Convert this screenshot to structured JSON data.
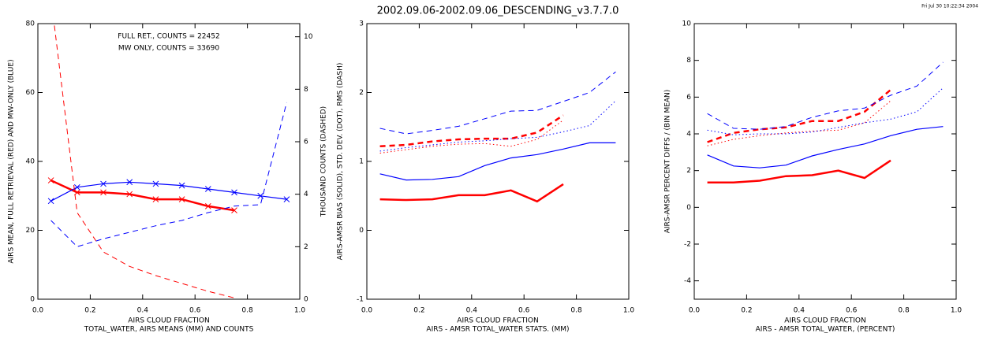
{
  "chart_data": [
    {
      "type": "line",
      "annotations": [
        {
          "text": "FULL RET.,  COUNTS = 22452",
          "color": "#ff0000"
        },
        {
          "text": "MW ONLY, COUNTS = 33690",
          "color": "#0000ff"
        }
      ],
      "ylabel": "AIRS MEAN, FULL RETRIEVAL (RED) AND MW-ONLY (BLUE)",
      "y2label": "THOUSAND COUNTS (DASHED)",
      "xlabel": "AIRS CLOUD FRACTION",
      "caption": "TOTAL_WATER, AIRS MEANS (MM) AND COUNTS",
      "xlim": [
        0,
        1
      ],
      "xticks": [
        {
          "value": 0,
          "label": "0.0"
        },
        0.2,
        0.4,
        0.6,
        0.8,
        {
          "value": 1,
          "label": "1.0"
        }
      ],
      "ylim": [
        0,
        80
      ],
      "yticks": [
        0,
        20,
        40,
        60,
        80
      ],
      "y2lim": [
        0,
        10.5
      ],
      "y2ticks": [
        0,
        2,
        4,
        6,
        8,
        10
      ],
      "x": [
        0.05,
        0.15,
        0.25,
        0.35,
        0.45,
        0.55,
        0.65,
        0.75,
        0.85,
        0.95
      ],
      "series": [
        {
          "color": "#ff0000",
          "style": "solid",
          "width": 2.5,
          "marker": "x",
          "values": [
            34.5,
            31,
            31,
            30.5,
            29,
            29,
            27,
            25.8,
            null,
            null
          ]
        },
        {
          "color": "#0000ff",
          "style": "solid",
          "width": 1.2,
          "marker": "x",
          "values": [
            28.5,
            32.5,
            33.5,
            34,
            33.5,
            33,
            32,
            31,
            30,
            29
          ]
        },
        {
          "color": "#ff0000",
          "style": "dashed",
          "width": 1,
          "axis": "y2",
          "values": [
            11.5,
            3.3,
            1.8,
            1.25,
            0.9,
            0.6,
            0.3,
            0.05,
            null,
            null
          ]
        },
        {
          "color": "#0000ff",
          "style": "dashed",
          "width": 1,
          "axis": "y2",
          "values": [
            3.0,
            2.0,
            2.3,
            2.55,
            2.8,
            3.0,
            3.3,
            3.55,
            3.6,
            7.5
          ]
        }
      ]
    },
    {
      "type": "line",
      "title": "2002.09.06-2002.09.06_DESCENDING_v3.7.7.0",
      "ylabel": "AIRS-AMSR BIAS (SOLID), STD. DEV. (DOT), RMS (DASH)",
      "xlabel": "AIRS CLOUD FRACTION",
      "caption": "AIRS - AMSR TOTAL_WATER STATS. (MM)",
      "xlim": [
        0,
        1
      ],
      "xticks": [
        {
          "value": 0,
          "label": "0.0"
        },
        0.2,
        0.4,
        0.6,
        0.8,
        {
          "value": 1,
          "label": "1.0"
        }
      ],
      "ylim": [
        -1,
        3
      ],
      "yticks": [
        -1,
        0,
        1,
        2,
        3
      ],
      "x": [
        0.05,
        0.15,
        0.25,
        0.35,
        0.45,
        0.55,
        0.65,
        0.75,
        0.85,
        0.95
      ],
      "series": [
        {
          "color": "#ff0000",
          "style": "solid",
          "width": 2.5,
          "values": [
            0.45,
            0.44,
            0.45,
            0.51,
            0.51,
            0.58,
            0.42,
            0.67,
            null,
            null
          ]
        },
        {
          "color": "#0000ff",
          "style": "solid",
          "width": 1.2,
          "values": [
            0.82,
            0.73,
            0.74,
            0.78,
            0.94,
            1.05,
            1.1,
            1.18,
            1.27,
            1.27
          ]
        },
        {
          "color": "#ff0000",
          "style": "dashed",
          "width": 2.5,
          "values": [
            1.22,
            1.24,
            1.29,
            1.32,
            1.33,
            1.33,
            1.42,
            1.67,
            null,
            null
          ]
        },
        {
          "color": "#ff0000",
          "style": "dotted",
          "width": 1,
          "values": [
            1.12,
            1.17,
            1.22,
            1.25,
            1.26,
            1.22,
            1.32,
            1.6,
            null,
            null
          ]
        },
        {
          "color": "#0000ff",
          "style": "dashed",
          "width": 1,
          "values": [
            1.48,
            1.4,
            1.45,
            1.51,
            1.62,
            1.73,
            1.74,
            1.87,
            2.0,
            2.3
          ]
        },
        {
          "color": "#0000ff",
          "style": "dotted",
          "width": 1,
          "values": [
            1.15,
            1.2,
            1.24,
            1.28,
            1.3,
            1.33,
            1.35,
            1.43,
            1.52,
            1.88
          ]
        }
      ]
    },
    {
      "type": "line",
      "annotation": "Fri Jul 30 10:22:34 2004",
      "ylabel": "AIRS-AMSR PERCENT DIFFS / (BIN MEAN)",
      "xlabel": "AIRS CLOUD FRACTION",
      "caption": "AIRS - AMSR TOTAL_WATER, (PERCENT)",
      "xlim": [
        0,
        1
      ],
      "xticks": [
        {
          "value": 0,
          "label": "0.0"
        },
        0.2,
        0.4,
        0.6,
        0.8,
        {
          "value": 1,
          "label": "1.0"
        }
      ],
      "ylim": [
        -5,
        10
      ],
      "yticks": [
        -4,
        -2,
        0,
        2,
        4,
        6,
        8,
        10
      ],
      "x": [
        0.05,
        0.15,
        0.25,
        0.35,
        0.45,
        0.55,
        0.65,
        0.75,
        0.85,
        0.95
      ],
      "series": [
        {
          "color": "#ff0000",
          "style": "solid",
          "width": 2.5,
          "values": [
            1.35,
            1.35,
            1.45,
            1.7,
            1.75,
            2.0,
            1.6,
            2.55,
            null,
            null
          ]
        },
        {
          "color": "#0000ff",
          "style": "solid",
          "width": 1.2,
          "values": [
            2.85,
            2.25,
            2.15,
            2.3,
            2.8,
            3.15,
            3.45,
            3.9,
            4.25,
            4.4
          ]
        },
        {
          "color": "#ff0000",
          "style": "dashed",
          "width": 2.5,
          "values": [
            3.55,
            4.05,
            4.25,
            4.35,
            4.7,
            4.7,
            5.2,
            6.4,
            null,
            null
          ]
        },
        {
          "color": "#ff0000",
          "style": "dotted",
          "width": 1,
          "values": [
            3.35,
            3.7,
            3.9,
            4.05,
            4.15,
            4.2,
            4.6,
            5.8,
            null,
            null
          ]
        },
        {
          "color": "#0000ff",
          "style": "dashed",
          "width": 1,
          "values": [
            5.1,
            4.3,
            4.25,
            4.4,
            4.9,
            5.25,
            5.4,
            6.1,
            6.6,
            7.9
          ]
        },
        {
          "color": "#0000ff",
          "style": "dotted",
          "width": 1,
          "values": [
            4.2,
            3.95,
            4.0,
            4.0,
            4.1,
            4.35,
            4.6,
            4.8,
            5.2,
            6.5
          ]
        }
      ]
    }
  ]
}
